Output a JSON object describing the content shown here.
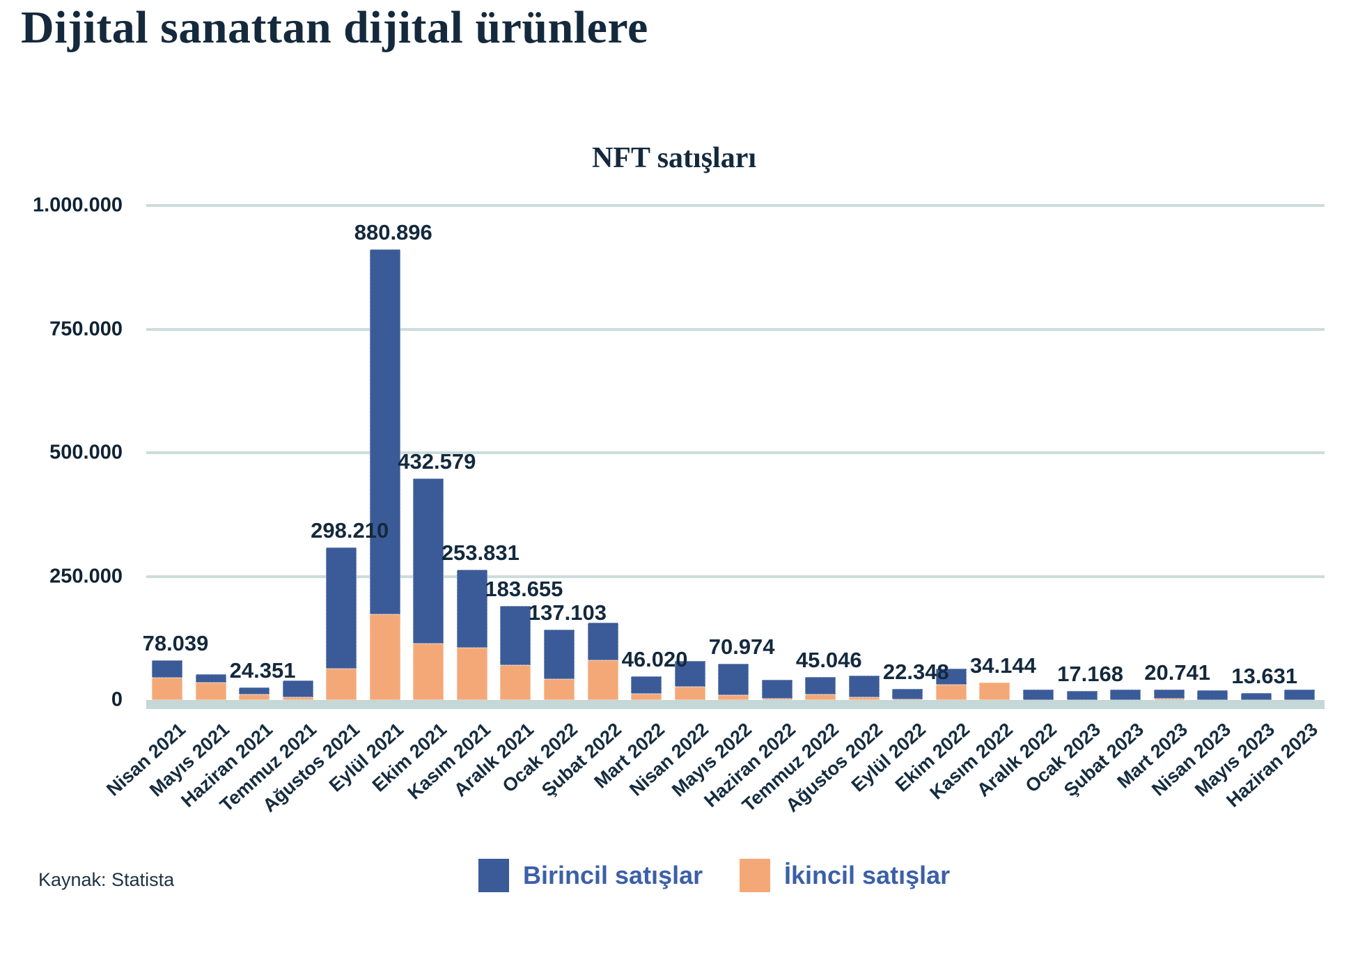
{
  "header": {
    "title": "Dijital sanattan dijital ürünlere"
  },
  "footer": {
    "source": "Kaynak: Statista"
  },
  "colors": {
    "primary_bar": "#3b5b98",
    "secondary_bar": "#f5a877",
    "title_text": "#14293c",
    "legend_text": "#3c60a8",
    "gridline": "#ccdcdd",
    "axis_strip": "#c5d7d6"
  },
  "chart_data": {
    "type": "bar",
    "subtype": "stacked-column",
    "title": "NFT satışları",
    "grid": "horizontal",
    "legend_position": "bottom",
    "y_axis": {
      "min": 0,
      "max": 1000000,
      "ticks": [
        "1.000.000",
        "750.000",
        "500.000",
        "250.000",
        "0"
      ]
    },
    "categories": [
      "Nisan 2021",
      "Mayıs 2021",
      "Haziran 2021",
      "Temmuz 2021",
      "Ağustos 2021",
      "Eylül 2021",
      "Ekim 2021",
      "Kasım 2021",
      "Aralık 2021",
      "Ocak 2022",
      "Şubat 2022",
      "Mart 2022",
      "Nisan 2022",
      "Mayıs 2022",
      "Haziran 2022",
      "Temmuz 2022",
      "Ağustos 2022",
      "Eylül 2022",
      "Ekim 2022",
      "Kasım 2022",
      "Aralık 2022",
      "Ocak 2023",
      "Şubat 2023",
      "Mart 2023",
      "Nisan 2023",
      "Mayıs 2023",
      "Haziran 2023"
    ],
    "series": [
      {
        "name": "Birincil satışlar",
        "color": "#3b5b98",
        "stack_position": "top",
        "values": [
          34039,
          16000,
          13351,
          32000,
          237210,
          713896,
          322579,
          151831,
          115655,
          96103,
          73000,
          34020,
          50000,
          60974,
          36000,
          34046,
          42000,
          20348,
          31000,
          0,
          20000,
          17168,
          20000,
          17741,
          19000,
          13631,
          20000
        ]
      },
      {
        "name": "İkincil satışlar",
        "color": "#f5a877",
        "stack_position": "bottom",
        "values": [
          44000,
          34000,
          11000,
          6000,
          61000,
          167000,
          110000,
          102000,
          68000,
          41000,
          78000,
          12000,
          26000,
          10000,
          3000,
          11000,
          6000,
          2000,
          30000,
          34144,
          0,
          0,
          0,
          3000,
          0,
          0,
          0
        ]
      }
    ],
    "total_labels": [
      "78.039",
      "",
      "24.351",
      "",
      "298.210",
      "880.896",
      "432.579",
      "253.831",
      "183.655",
      "137.103",
      "",
      "46.020",
      "",
      "70.974",
      "",
      "45.046",
      "",
      "22.348",
      "",
      "34.144",
      "",
      "17.168",
      "",
      "20.741",
      "",
      "13.631",
      ""
    ]
  }
}
